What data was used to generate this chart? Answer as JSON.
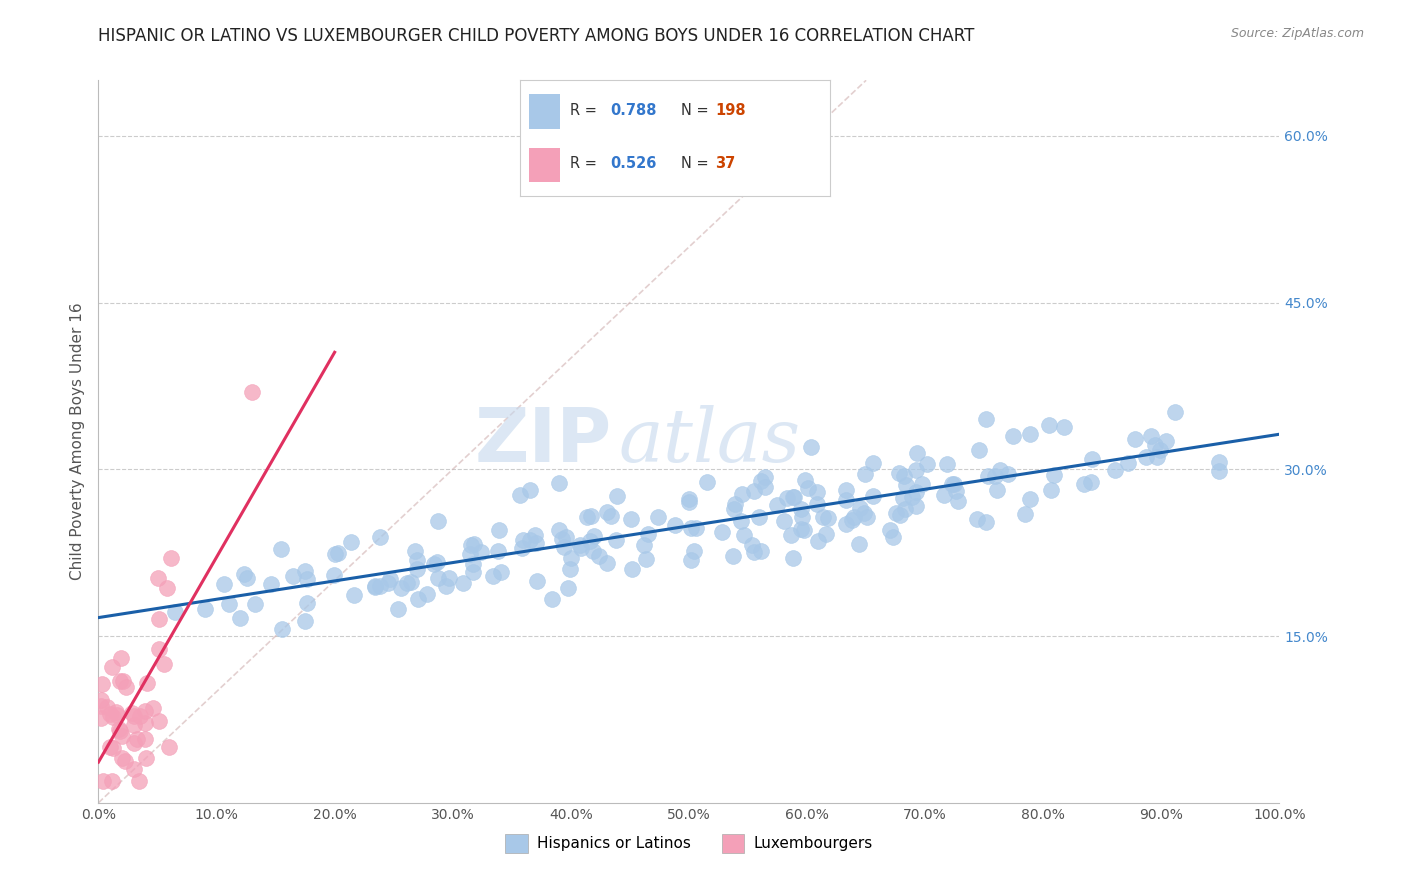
{
  "title": "HISPANIC OR LATINO VS LUXEMBOURGER CHILD POVERTY AMONG BOYS UNDER 16 CORRELATION CHART",
  "source": "Source: ZipAtlas.com",
  "ylabel": "Child Poverty Among Boys Under 16",
  "xlim": [
    0.0,
    1.0
  ],
  "ylim": [
    0.0,
    0.65
  ],
  "xticks": [
    0.0,
    0.1,
    0.2,
    0.3,
    0.4,
    0.5,
    0.6,
    0.7,
    0.8,
    0.9,
    1.0
  ],
  "xticklabels": [
    "0.0%",
    "10.0%",
    "20.0%",
    "30.0%",
    "40.0%",
    "50.0%",
    "60.0%",
    "70.0%",
    "80.0%",
    "90.0%",
    "100.0%"
  ],
  "yticks": [
    0.15,
    0.3,
    0.45,
    0.6
  ],
  "yticklabels": [
    "15.0%",
    "30.0%",
    "45.0%",
    "60.0%"
  ],
  "blue_color": "#a8c8e8",
  "pink_color": "#f4a0b8",
  "blue_line_color": "#1a5fa8",
  "pink_line_color": "#e03060",
  "ref_line_color": "#d0b0b0",
  "legend_r_blue": "0.788",
  "legend_n_blue": "198",
  "legend_r_pink": "0.526",
  "legend_n_pink": "37",
  "legend_label_blue": "Hispanics or Latinos",
  "legend_label_pink": "Luxembourgers",
  "watermark_zip": "ZIP",
  "watermark_atlas": "atlas",
  "grid_color": "#cccccc",
  "title_fontsize": 12,
  "axis_fontsize": 11,
  "tick_fontsize": 10,
  "blue_seed": 42,
  "pink_seed": 7,
  "blue_n": 198,
  "pink_n": 37
}
